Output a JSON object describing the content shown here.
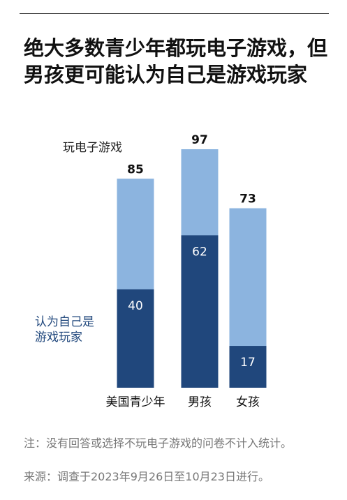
{
  "chart_data": {
    "type": "overlap_bar",
    "title": "绝大多数青少年都玩电子游戏，但男孩更可能认为自己是游戏玩家",
    "categories": [
      "美国青少年",
      "男孩",
      "女孩"
    ],
    "series": [
      {
        "name": "玩电子游戏",
        "color": "#8cb4df",
        "values": [
          85,
          97,
          73
        ]
      },
      {
        "name": "认为自己是游戏玩家",
        "color": "#20477c",
        "values": [
          40,
          62,
          17
        ]
      }
    ],
    "note": "注：没有回答或选择不玩电子游戏的问卷不计入统计。",
    "source": "来源：调查于2023年9月26日至10月23日进行。"
  }
}
